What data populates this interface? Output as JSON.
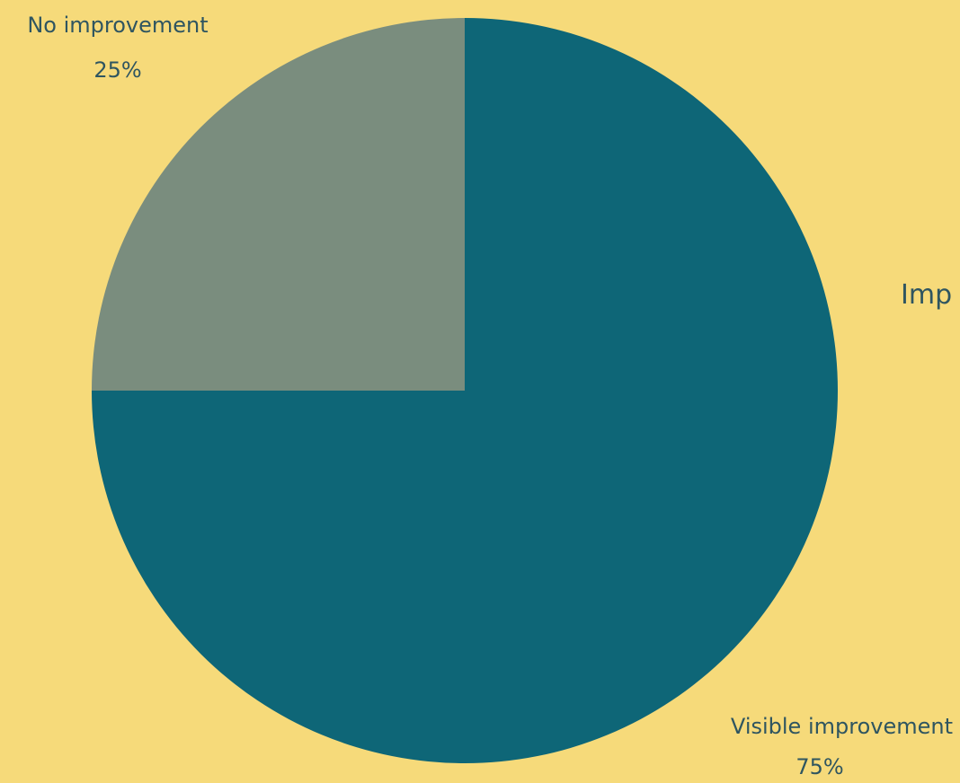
{
  "background_color": "#F6DA7A",
  "label_color": "#2F5560",
  "chart_data": {
    "type": "pie",
    "title": "",
    "start_angle_deg": 0,
    "direction": "clockwise",
    "slices": [
      {
        "label": "Visible improvement",
        "value": 75,
        "display_value": "75%",
        "color": "#0E6677"
      },
      {
        "label": "No improvement",
        "value": 25,
        "display_value": "25%",
        "color": "#7A8D7E"
      }
    ],
    "clipped_text": "Imp"
  }
}
